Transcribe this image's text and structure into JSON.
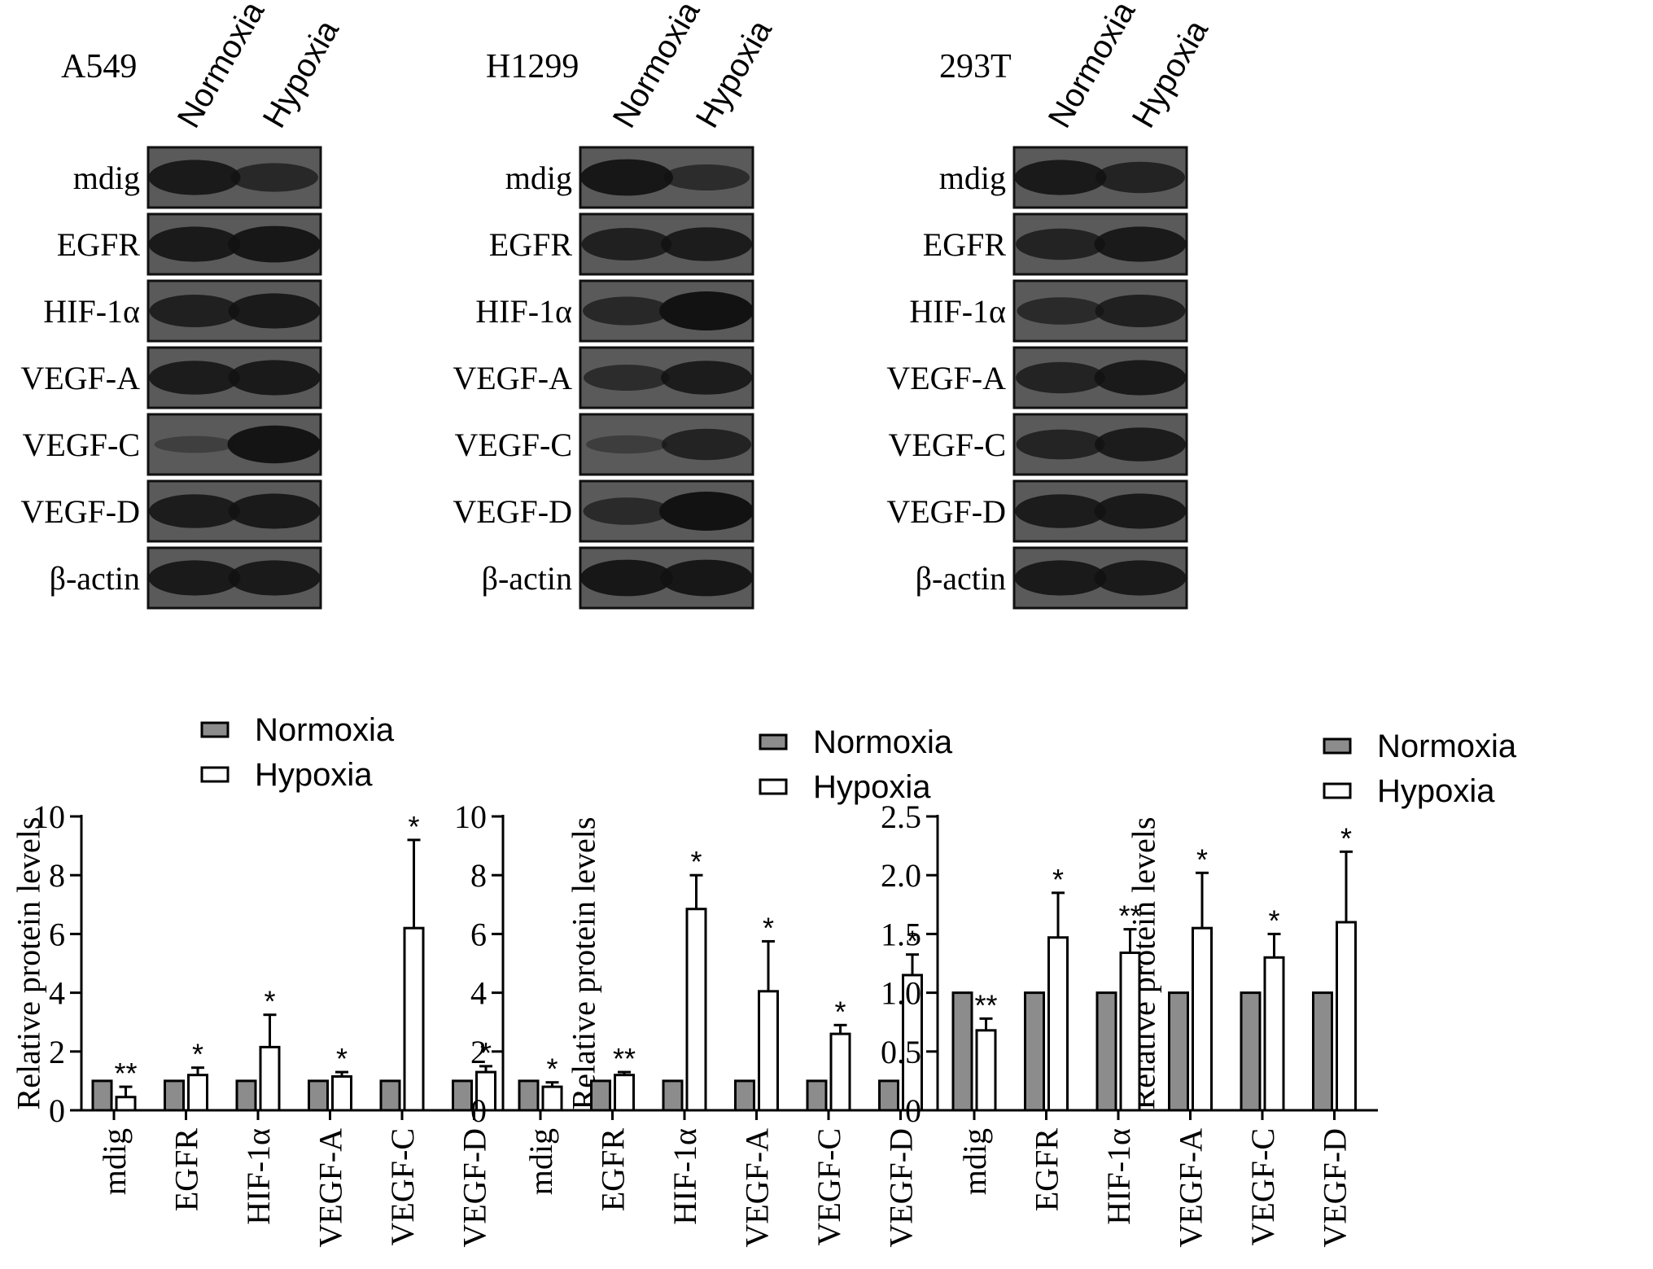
{
  "blots": [
    {
      "cell_line": "A549",
      "lanes": [
        "Normoxia",
        "Hypoxia"
      ],
      "rows": [
        {
          "label": "mdig",
          "intensity": [
            0.85,
            0.6
          ]
        },
        {
          "label": "EGFR",
          "intensity": [
            0.85,
            0.9
          ]
        },
        {
          "label": "HIF-1α",
          "intensity": [
            0.75,
            0.85
          ]
        },
        {
          "label": "VEGF-A",
          "intensity": [
            0.8,
            0.85
          ]
        },
        {
          "label": "VEGF-C",
          "intensity": [
            0.15,
            0.95
          ]
        },
        {
          "label": "VEGF-D",
          "intensity": [
            0.8,
            0.85
          ]
        },
        {
          "label": "β-actin",
          "intensity": [
            0.85,
            0.85
          ]
        }
      ]
    },
    {
      "cell_line": "H1299",
      "lanes": [
        "Normoxia",
        "Hypoxia"
      ],
      "rows": [
        {
          "label": "mdig",
          "intensity": [
            0.9,
            0.5
          ]
        },
        {
          "label": "EGFR",
          "intensity": [
            0.75,
            0.8
          ]
        },
        {
          "label": "HIF-1α",
          "intensity": [
            0.6,
            1.0
          ]
        },
        {
          "label": "VEGF-A",
          "intensity": [
            0.5,
            0.8
          ]
        },
        {
          "label": "VEGF-C",
          "intensity": [
            0.2,
            0.7
          ]
        },
        {
          "label": "VEGF-D",
          "intensity": [
            0.55,
            1.0
          ]
        },
        {
          "label": "β-actin",
          "intensity": [
            0.9,
            0.9
          ]
        }
      ]
    },
    {
      "cell_line": "293T",
      "lanes": [
        "Normoxia",
        "Hypoxia"
      ],
      "rows": [
        {
          "label": "mdig",
          "intensity": [
            0.85,
            0.7
          ]
        },
        {
          "label": "EGFR",
          "intensity": [
            0.7,
            0.85
          ]
        },
        {
          "label": "HIF-1α",
          "intensity": [
            0.55,
            0.75
          ]
        },
        {
          "label": "VEGF-A",
          "intensity": [
            0.7,
            0.85
          ]
        },
        {
          "label": "VEGF-C",
          "intensity": [
            0.65,
            0.8
          ]
        },
        {
          "label": "VEGF-D",
          "intensity": [
            0.8,
            0.85
          ]
        },
        {
          "label": "β-actin",
          "intensity": [
            0.85,
            0.85
          ]
        }
      ]
    }
  ],
  "colors": {
    "normoxia_bar": "#8c8c8c",
    "hypoxia_bar": "#ffffff",
    "axis": "#000000",
    "blot_background": "#5a5a5a",
    "band": "#121212"
  },
  "chart_data": [
    {
      "type": "bar",
      "categories": [
        "mdig",
        "EGFR",
        "HIF-1α",
        "VEGF-A",
        "VEGF-C",
        "VEGF-D"
      ],
      "ylabel": "Relative protein levels",
      "ylim": [
        0,
        10
      ],
      "yticks": [
        0,
        2,
        4,
        6,
        8,
        10
      ],
      "ytick_labels": [
        "0",
        "2",
        "4",
        "6",
        "8",
        "10"
      ],
      "legend": "top",
      "series": [
        {
          "name": "Normoxia",
          "values": [
            1,
            1,
            1,
            1,
            1,
            1
          ],
          "errors": [
            0,
            0,
            0,
            0,
            0,
            0
          ]
        },
        {
          "name": "Hypoxia",
          "values": [
            0.45,
            1.2,
            2.15,
            1.15,
            6.2,
            1.3
          ],
          "errors": [
            0.35,
            0.25,
            1.1,
            0.15,
            3.0,
            0.2
          ]
        }
      ],
      "significance": [
        "**",
        "*",
        "*",
        "*",
        "*",
        "*"
      ]
    },
    {
      "type": "bar",
      "categories": [
        "mdig",
        "EGFR",
        "HIF-1α",
        "VEGF-A",
        "VEGF-C",
        "VEGF-D"
      ],
      "ylabel": "Relative protein levels",
      "ylim": [
        0,
        10
      ],
      "yticks": [
        0,
        2,
        4,
        6,
        8,
        10
      ],
      "ytick_labels": [
        "0",
        "2",
        "4",
        "6",
        "8",
        "10"
      ],
      "legend": "top",
      "series": [
        {
          "name": "Normoxia",
          "values": [
            1,
            1,
            1,
            1,
            1,
            1
          ],
          "errors": [
            0,
            0,
            0,
            0,
            0,
            0
          ]
        },
        {
          "name": "Hypoxia",
          "values": [
            0.8,
            1.2,
            6.85,
            4.05,
            2.6,
            4.6
          ],
          "errors": [
            0.15,
            0.1,
            1.15,
            1.7,
            0.3,
            0.7
          ]
        }
      ],
      "significance": [
        "*",
        "**",
        "*",
        "*",
        "*",
        "*"
      ]
    },
    {
      "type": "bar",
      "categories": [
        "mdig",
        "EGFR",
        "HIF-1α",
        "VEGF-A",
        "VEGF-C",
        "VEGF-D"
      ],
      "ylabel": "Relative protein levels",
      "ylim": [
        0,
        2.5
      ],
      "yticks": [
        0,
        0.5,
        1.0,
        1.5,
        2.0,
        2.5
      ],
      "ytick_labels": [
        "0",
        "0.5",
        "1.0",
        "1.5",
        "2.0",
        "2.5"
      ],
      "legend": "top",
      "series": [
        {
          "name": "Normoxia",
          "values": [
            1,
            1,
            1,
            1,
            1,
            1
          ],
          "errors": [
            0,
            0,
            0,
            0,
            0,
            0
          ]
        },
        {
          "name": "Hypoxia",
          "values": [
            0.68,
            1.47,
            1.34,
            1.55,
            1.3,
            1.6
          ],
          "errors": [
            0.1,
            0.38,
            0.2,
            0.47,
            0.2,
            0.6
          ]
        }
      ],
      "significance": [
        "**",
        "*",
        "**",
        "*",
        "*",
        "*"
      ]
    }
  ]
}
